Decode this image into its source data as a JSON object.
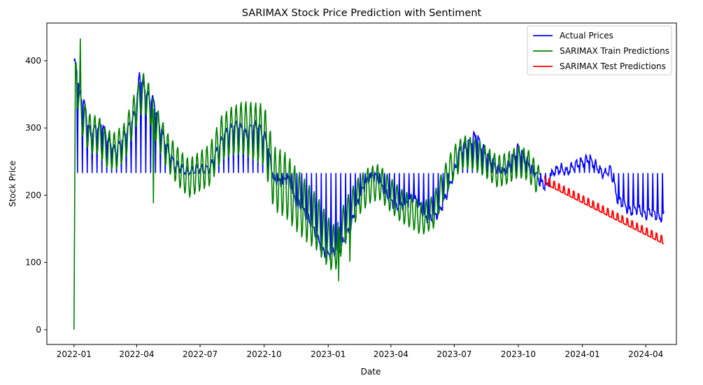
{
  "chart_data": {
    "type": "line",
    "title": "SARIMAX Stock Price Prediction with Sentiment",
    "xlabel": "Date",
    "ylabel": "Stock Price",
    "xlim": [
      "2021-11-23",
      "2024-05-15"
    ],
    "ylim": [
      -22,
      456
    ],
    "xticks": [
      "2022-01",
      "2022-04",
      "2022-07",
      "2022-10",
      "2023-01",
      "2023-04",
      "2023-07",
      "2023-10",
      "2024-01",
      "2024-04"
    ],
    "yticks": [
      0,
      100,
      200,
      300,
      400
    ],
    "grid": false,
    "legend_position": "top-right",
    "series": [
      {
        "name": "Actual Prices",
        "color": "#0000ff",
        "x": [
          "2022-01-01",
          "2022-01-05",
          "2022-01-10",
          "2022-01-15",
          "2022-01-20",
          "2022-01-25",
          "2022-02-01",
          "2022-02-10",
          "2022-02-20",
          "2022-03-01",
          "2022-03-10",
          "2022-03-20",
          "2022-03-31",
          "2022-04-05",
          "2022-04-15",
          "2022-04-25",
          "2022-05-05",
          "2022-05-15",
          "2022-05-25",
          "2022-06-05",
          "2022-06-15",
          "2022-06-25",
          "2022-07-05",
          "2022-07-15",
          "2022-07-25",
          "2022-08-05",
          "2022-08-15",
          "2022-08-25",
          "2022-09-05",
          "2022-09-15",
          "2022-09-25",
          "2022-10-05",
          "2022-10-15",
          "2022-10-25",
          "2022-11-05",
          "2022-11-15",
          "2022-11-25",
          "2022-12-05",
          "2022-12-15",
          "2022-12-25",
          "2023-01-01",
          "2023-01-10",
          "2023-01-20",
          "2023-02-01",
          "2023-02-10",
          "2023-02-20",
          "2023-03-01",
          "2023-03-10",
          "2023-03-20",
          "2023-04-01",
          "2023-04-10",
          "2023-04-20",
          "2023-05-01",
          "2023-05-10",
          "2023-05-20",
          "2023-06-01",
          "2023-06-10",
          "2023-06-20",
          "2023-07-01",
          "2023-07-10",
          "2023-07-20",
          "2023-08-01",
          "2023-08-10",
          "2023-08-20",
          "2023-09-01",
          "2023-09-10",
          "2023-09-20",
          "2023-10-01",
          "2023-10-10",
          "2023-10-20",
          "2023-11-01",
          "2023-11-10",
          "2023-11-20",
          "2023-12-01",
          "2023-12-10",
          "2023-12-20",
          "2024-01-01",
          "2024-01-10",
          "2024-01-20",
          "2024-02-01",
          "2024-02-10",
          "2024-02-20",
          "2024-03-01",
          "2024-03-10",
          "2024-03-20",
          "2024-04-01",
          "2024-04-10",
          "2024-04-20",
          "2024-04-27"
        ],
        "y": [
          400,
          385,
          345,
          340,
          310,
          290,
          300,
          305,
          280,
          265,
          280,
          300,
          325,
          380,
          350,
          340,
          300,
          270,
          245,
          240,
          232,
          240,
          238,
          240,
          265,
          290,
          300,
          305,
          290,
          305,
          300,
          280,
          222,
          218,
          225,
          190,
          180,
          160,
          140,
          115,
          110,
          115,
          125,
          150,
          180,
          210,
          225,
          230,
          210,
          190,
          180,
          185,
          195,
          190,
          165,
          165,
          175,
          200,
          235,
          270,
          275,
          290,
          270,
          255,
          240,
          235,
          250,
          270,
          255,
          240,
          220,
          210,
          235,
          240,
          235,
          245,
          250,
          255,
          245,
          230,
          240,
          195,
          185,
          175,
          180,
          170,
          175,
          165,
          170
        ],
        "notch_baseline": 233
      },
      {
        "name": "SARIMAX Train Predictions",
        "color": "#008000",
        "x": [
          "2022-01-01",
          "2022-01-03",
          "2022-01-06",
          "2022-01-10",
          "2022-01-15",
          "2022-01-25",
          "2022-02-05",
          "2022-02-15",
          "2022-03-01",
          "2022-03-15",
          "2022-03-31",
          "2022-04-10",
          "2022-04-20",
          "2022-05-01",
          "2022-05-15",
          "2022-06-01",
          "2022-06-15",
          "2022-07-01",
          "2022-07-15",
          "2022-08-01",
          "2022-08-15",
          "2022-09-01",
          "2022-09-15",
          "2022-10-01",
          "2022-10-15",
          "2022-11-01",
          "2022-11-15",
          "2022-12-01",
          "2022-12-15",
          "2023-01-01",
          "2023-01-10",
          "2023-01-20",
          "2023-02-01",
          "2023-02-15",
          "2023-03-01",
          "2023-03-15",
          "2023-04-01",
          "2023-04-15",
          "2023-05-01",
          "2023-05-15",
          "2023-06-01",
          "2023-06-15",
          "2023-07-01",
          "2023-07-15",
          "2023-08-01",
          "2023-08-15",
          "2023-09-01",
          "2023-09-15",
          "2023-10-01",
          "2023-10-15",
          "2023-10-31"
        ],
        "y": [
          0,
          395,
          360,
          330,
          310,
          290,
          290,
          270,
          265,
          280,
          330,
          355,
          335,
          300,
          265,
          240,
          225,
          236,
          245,
          285,
          295,
          300,
          295,
          290,
          225,
          215,
          195,
          175,
          160,
          130,
          120,
          145,
          175,
          200,
          215,
          220,
          200,
          185,
          175,
          165,
          175,
          215,
          250,
          265,
          260,
          250,
          235,
          240,
          250,
          245,
          220
        ],
        "oscillation": {
          "amplitude_start": 30,
          "amplitude_end": 24,
          "amplitude_max_midspan": 50,
          "spikes": [
            {
              "x": "2022-01-01",
              "y": 0
            },
            {
              "x": "2022-01-10",
              "y": 433
            },
            {
              "x": "2022-04-25",
              "y": 188
            },
            {
              "x": "2023-01-16",
              "y": 72
            },
            {
              "x": "2023-02-01",
              "y": 101
            }
          ]
        }
      },
      {
        "name": "SARIMAX Test Predictions",
        "color": "#ff0000",
        "x": [
          "2023-11-07",
          "2024-04-27"
        ],
        "y": [
          220,
          130
        ],
        "oscillation": {
          "amplitude": 8,
          "period_days": 7
        }
      }
    ]
  }
}
